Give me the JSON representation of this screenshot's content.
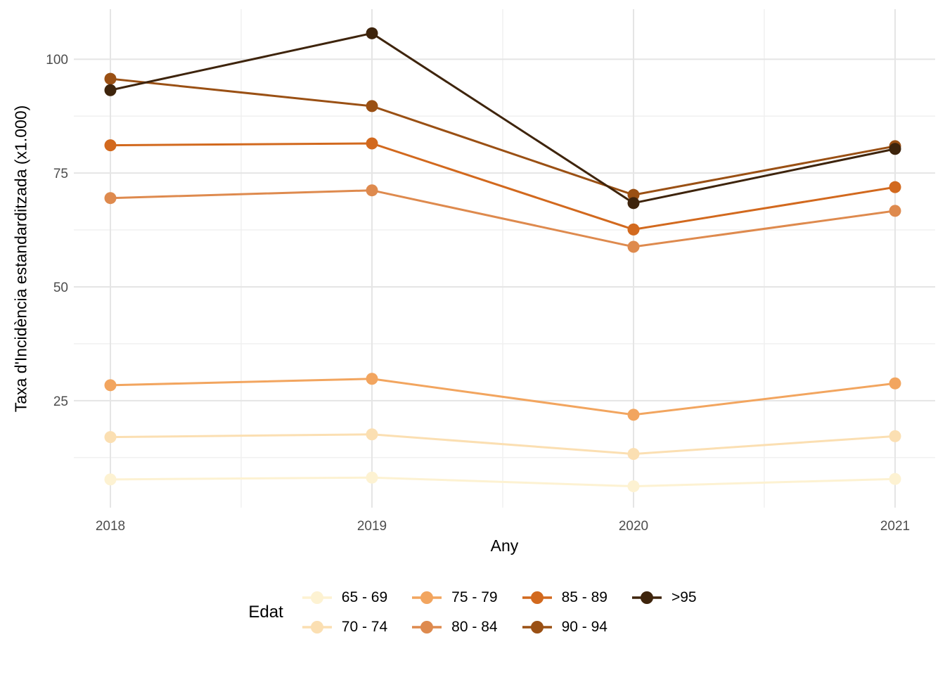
{
  "chart_data": {
    "type": "line",
    "title": "",
    "xlabel": "Any",
    "ylabel": "Taxa d'Incidència estandarditzada (x1.000)",
    "categories": [
      "2018",
      "2019",
      "2020",
      "2021"
    ],
    "y_ticks": [
      25,
      50,
      75,
      100
    ],
    "y_minor_ticks": [
      12.5,
      37.5,
      62.5,
      87.5
    ],
    "ylim": [
      1.5,
      111
    ],
    "grid": "major and minor, light grey on white",
    "legend_position": "bottom",
    "legend_title": "Edat",
    "series": [
      {
        "name": "65 - 69",
        "color": "#FDF2D2",
        "values": [
          7.7,
          8.1,
          6.2,
          7.8
        ]
      },
      {
        "name": "70 - 74",
        "color": "#FBDFB2",
        "values": [
          17.0,
          17.6,
          13.3,
          17.2
        ]
      },
      {
        "name": "75 - 79",
        "color": "#F2A55F",
        "values": [
          28.4,
          29.8,
          21.9,
          28.8
        ]
      },
      {
        "name": "80 - 84",
        "color": "#DE8A4E",
        "values": [
          69.5,
          71.2,
          58.8,
          66.7
        ]
      },
      {
        "name": "85 - 89",
        "color": "#D2691E",
        "values": [
          81.1,
          81.5,
          62.6,
          71.9
        ]
      },
      {
        "name": "90 - 94",
        "color": "#9A5014",
        "values": [
          95.7,
          89.7,
          70.2,
          80.9
        ]
      },
      {
        "name": ">95",
        "color": "#3E240C",
        "values": [
          93.2,
          105.7,
          68.4,
          80.3
        ]
      }
    ],
    "style": {
      "tick_label_color": "#4d4d4d",
      "grid_major_color": "#e5e5e5",
      "grid_minor_color": "#f0f0f0",
      "line_width": 3,
      "point_radius": 8.5
    }
  }
}
